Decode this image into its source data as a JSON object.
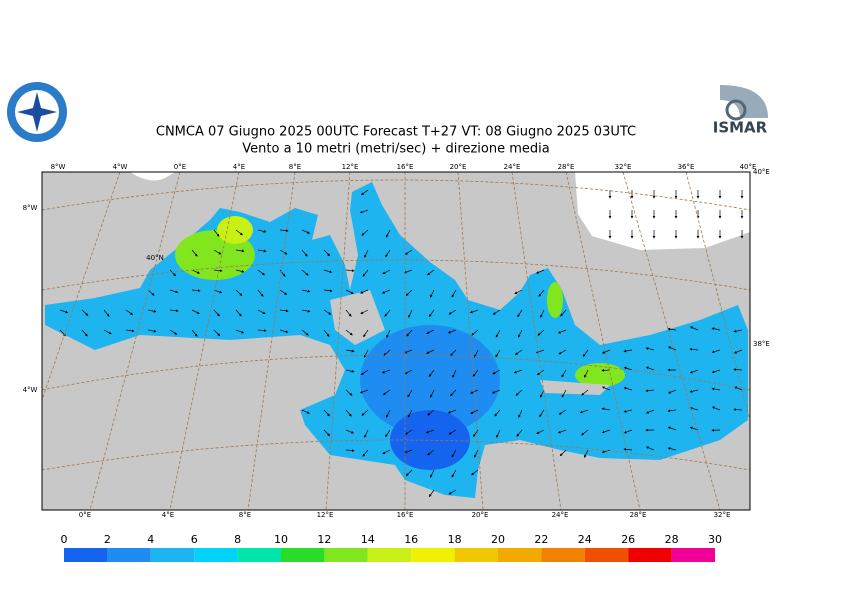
{
  "header": {
    "line1": "CNMCA 07   Giugno  2025 00UTC Forecast T+27 VT: 08   Giugno  2025 03UTC",
    "line2": "Vento a 10 metri (metri/sec) + direzione media"
  },
  "logo": {
    "text": "ISMAR"
  },
  "map": {
    "top_labels": [
      "8°W",
      "4°W",
      "0°E",
      "4°E",
      "8°E",
      "12°E",
      "16°E",
      "20°E",
      "24°E",
      "28°E",
      "32°E",
      "36°E",
      "40°E"
    ],
    "left_labels": [
      "8°W",
      "40°N",
      "4°W"
    ],
    "right_labels": [
      "40°E",
      "38°E"
    ],
    "bottom_labels": [
      "0°E",
      "4°E",
      "8°E",
      "12°E",
      "16°E",
      "20°E",
      "24°E",
      "28°E",
      "32°E"
    ]
  },
  "colorbar": {
    "ticks": [
      0,
      2,
      4,
      6,
      8,
      10,
      12,
      14,
      16,
      18,
      20,
      22,
      24,
      26,
      28,
      30
    ],
    "colors": [
      "#1464f0",
      "#1e8cf0",
      "#1eb4f0",
      "#00d2fa",
      "#00e6aa",
      "#28dc28",
      "#82e61e",
      "#c8f014",
      "#f0f000",
      "#f0c800",
      "#f0aa00",
      "#f08200",
      "#f05000",
      "#f00000",
      "#f00096"
    ]
  }
}
